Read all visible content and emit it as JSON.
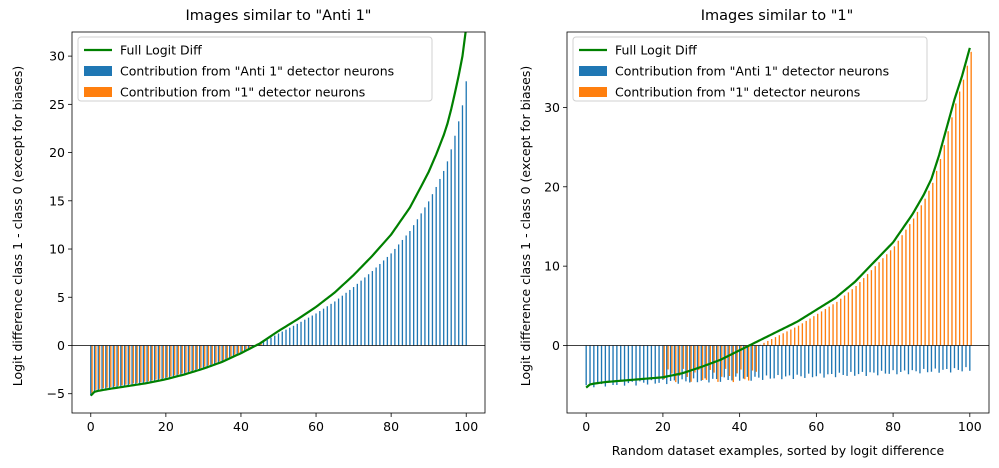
{
  "colors": {
    "anti_one": "#1f77b4",
    "one": "#ff7f0e",
    "full": "#008000"
  },
  "chart_data": [
    {
      "type": "bar+line",
      "title": "Images similar to \"Anti 1\"",
      "xlabel": "",
      "ylabel": "Logit difference class 1 - class 0 (except for biases)",
      "xlim": [
        -5,
        105
      ],
      "ylim": [
        -7,
        32.5
      ],
      "xticks": [
        "0",
        "20",
        "40",
        "60",
        "80",
        "100"
      ],
      "yticks": [
        "−5",
        "0",
        "5",
        "10",
        "15",
        "20",
        "25",
        "30"
      ],
      "legend_position": "top-left",
      "full_logit_diff": {
        "x": [
          0,
          1,
          2,
          5,
          10,
          15,
          20,
          25,
          30,
          35,
          40,
          45,
          50,
          55,
          60,
          65,
          70,
          75,
          80,
          85,
          88,
          90,
          92,
          94,
          95,
          96,
          97,
          98,
          99,
          100
        ],
        "y": [
          -5.2,
          -4.8,
          -4.7,
          -4.5,
          -4.2,
          -3.9,
          -3.5,
          -3.0,
          -2.4,
          -1.7,
          -0.8,
          0.2,
          1.5,
          2.7,
          4.0,
          5.5,
          7.3,
          9.3,
          11.5,
          14.3,
          16.5,
          18.0,
          19.8,
          21.8,
          23.0,
          24.5,
          26.2,
          28.0,
          30.0,
          33.0
        ]
      },
      "anti_one": {
        "x_start": 0,
        "x_end": 100,
        "y_start": -4.8,
        "y_end": 27.0,
        "shape": "accelerating",
        "note_values": "≈ full logit diff for negative region, up to ~27 at x=100"
      },
      "one": {
        "x_start": 0,
        "x_end": 45,
        "y_start": -4.5,
        "y_end": -0.3,
        "shape": "accelerating"
      },
      "legend": [
        {
          "label": "Full Logit Diff",
          "type": "line",
          "color_key": "full"
        },
        {
          "label": "Contribution from \"Anti 1\" detector neurons",
          "type": "patch",
          "color_key": "anti_one"
        },
        {
          "label": "Contribution from \"1\" detector neurons",
          "type": "patch",
          "color_key": "one"
        }
      ]
    },
    {
      "type": "bar+line",
      "title": "Images similar to \"1\"",
      "xlabel": "Random dataset examples, sorted by logit difference",
      "ylabel": "Logit difference class 1 - class 0 (except for biases)",
      "xlim": [
        -5,
        105
      ],
      "ylim": [
        -8.5,
        39.5
      ],
      "xticks": [
        "0",
        "20",
        "40",
        "60",
        "80",
        "100"
      ],
      "yticks": [
        "0",
        "10",
        "20",
        "30"
      ],
      "legend_position": "top-left",
      "full_logit_diff": {
        "x": [
          0,
          1,
          2,
          5,
          10,
          15,
          20,
          25,
          30,
          35,
          40,
          45,
          50,
          55,
          60,
          65,
          70,
          75,
          80,
          85,
          88,
          90,
          92,
          94,
          96,
          98,
          100
        ],
        "y": [
          -5.3,
          -4.9,
          -4.8,
          -4.6,
          -4.4,
          -4.2,
          -4.0,
          -3.5,
          -2.7,
          -1.8,
          -0.6,
          0.6,
          1.8,
          3.0,
          4.5,
          6.0,
          8.0,
          10.5,
          13.0,
          16.5,
          19.0,
          21.0,
          24.0,
          27.5,
          31.0,
          34.0,
          37.5
        ]
      },
      "anti_one": {
        "x_start": 0,
        "x_end": 100,
        "y_start": -5.0,
        "y_end": -3.0,
        "shape": "flat"
      },
      "one": {
        "x_start": 20,
        "x_end": 100,
        "y_start": -0.5,
        "y_end": 37.0,
        "shape": "accelerating",
        "negative_from": 20,
        "negative_to": 45,
        "negative_depth": -4.2
      },
      "legend": [
        {
          "label": "Full Logit Diff",
          "type": "line",
          "color_key": "full"
        },
        {
          "label": "Contribution from \"Anti 1\" detector neurons",
          "type": "patch",
          "color_key": "anti_one"
        },
        {
          "label": "Contribution from \"1\" detector neurons",
          "type": "patch",
          "color_key": "one"
        }
      ]
    }
  ]
}
